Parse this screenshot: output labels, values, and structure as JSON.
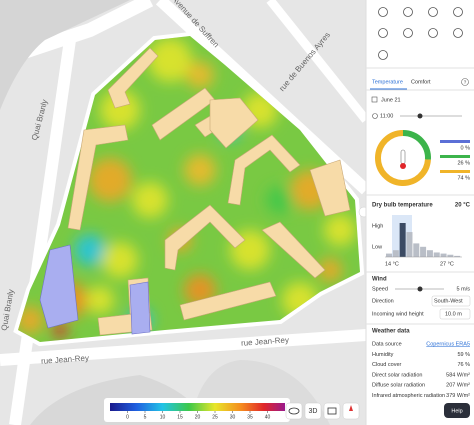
{
  "map": {
    "streets": [
      "Avenue de Suffren",
      "rue de Buenos Ayres",
      "Quai Branly",
      "Quai Branly",
      "rue Jean-Rey",
      "rue Jean-Rey"
    ],
    "colorbar": {
      "lim": [
        -5,
        45
      ],
      "ticks": [
        0,
        5,
        10,
        15,
        20,
        25,
        30,
        35,
        40
      ]
    },
    "view_3d": "3D"
  },
  "panel": {
    "tabs": [
      "Temperature",
      "Comfort"
    ],
    "help_icon": "?",
    "date": "June 21",
    "time": "11:00",
    "comfort": {
      "values": [
        0,
        26,
        74
      ],
      "value_labels": [
        "0 %",
        "26 %",
        "74 %"
      ],
      "colors": [
        "#5b6fd6",
        "#3cb44b",
        "#f0b429"
      ]
    },
    "dry_bulb": {
      "title": "Dry bulb temperature",
      "value": "20 °C",
      "high": "High",
      "low": "Low",
      "min": "14 °C",
      "max": "27 °C",
      "histogram": [
        3,
        6,
        30,
        22,
        12,
        9,
        6,
        4,
        3,
        2,
        1
      ]
    },
    "wind": {
      "title": "Wind",
      "speed_label": "Speed",
      "speed": "5 m/s",
      "direction_label": "Direction",
      "direction": "South-West",
      "height_label": "Incoming wind height",
      "height": "10.0 m"
    },
    "weather": {
      "title": "Weather data",
      "rows": [
        [
          "Data source",
          "Copernicus ERA5"
        ],
        [
          "Humidity",
          "59 %"
        ],
        [
          "Cloud cover",
          "76 %"
        ],
        [
          "Direct solar radiation",
          "584 W/m²"
        ],
        [
          "Diffuse solar radiation",
          "207 W/m²"
        ],
        [
          "Infrared atmospheric radiation",
          "379 W/m²"
        ]
      ]
    },
    "help": "Help"
  }
}
